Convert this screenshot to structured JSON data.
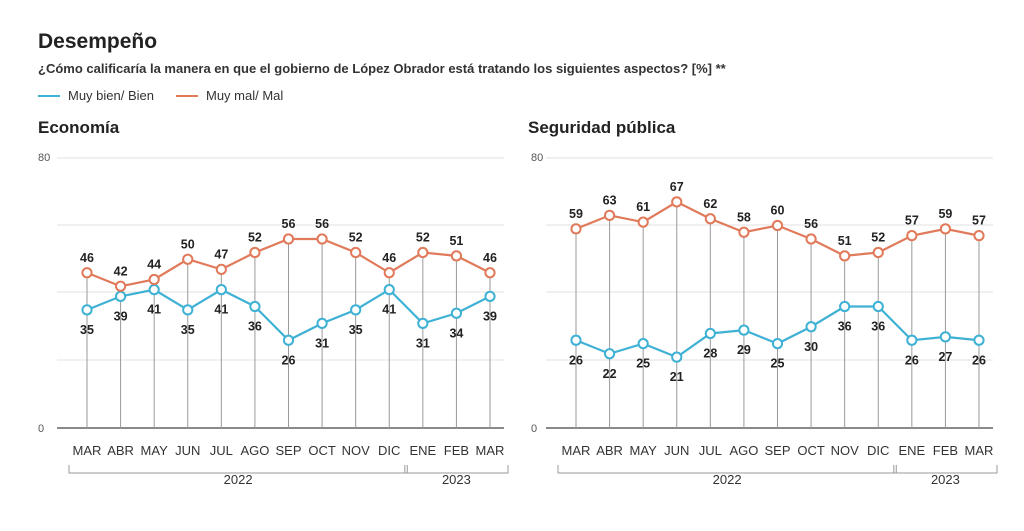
{
  "title": "Desempeño",
  "subtitle": "¿Cómo calificaría la manera en que el gobierno de López Obrador está tratando los siguientes aspectos? [%] **",
  "legend": [
    {
      "label": "Muy bien/ Bien",
      "color": "#3fb1d4"
    },
    {
      "label": "Muy mal/ Mal",
      "color": "#e07a5a"
    }
  ],
  "chart_data": [
    {
      "type": "line",
      "title": "Economía",
      "categories": [
        "MAR",
        "ABR",
        "MAY",
        "JUN",
        "JUL",
        "AGO",
        "SEP",
        "OCT",
        "NOV",
        "DIC",
        "ENE",
        "FEB",
        "MAR"
      ],
      "year_groups": [
        {
          "label": "2022",
          "from": 0,
          "to": 9
        },
        {
          "label": "2023",
          "from": 10,
          "to": 12
        }
      ],
      "ylim": [
        0,
        80
      ],
      "yticks": [
        0,
        80
      ],
      "grid": true,
      "series": [
        {
          "name": "Muy bien/ Bien",
          "color": "#3fb1d4",
          "values": [
            35,
            39,
            41,
            35,
            41,
            36,
            26,
            31,
            35,
            41,
            31,
            34,
            39
          ]
        },
        {
          "name": "Muy mal/ Mal",
          "color": "#e07a5a",
          "values": [
            46,
            42,
            44,
            50,
            47,
            52,
            56,
            56,
            52,
            46,
            52,
            51,
            46
          ]
        }
      ]
    },
    {
      "type": "line",
      "title": "Seguridad pública",
      "categories": [
        "MAR",
        "ABR",
        "MAY",
        "JUN",
        "JUL",
        "AGO",
        "SEP",
        "OCT",
        "NOV",
        "DIC",
        "ENE",
        "FEB",
        "MAR"
      ],
      "year_groups": [
        {
          "label": "2022",
          "from": 0,
          "to": 9
        },
        {
          "label": "2023",
          "from": 10,
          "to": 12
        }
      ],
      "ylim": [
        0,
        80
      ],
      "yticks": [
        0,
        80
      ],
      "grid": true,
      "series": [
        {
          "name": "Muy bien/ Bien",
          "color": "#3fb1d4",
          "values": [
            26,
            22,
            25,
            21,
            28,
            29,
            25,
            30,
            36,
            36,
            26,
            27,
            26
          ]
        },
        {
          "name": "Muy mal/ Mal",
          "color": "#e07a5a",
          "values": [
            59,
            63,
            61,
            67,
            62,
            58,
            60,
            56,
            51,
            52,
            57,
            59,
            57
          ]
        }
      ]
    }
  ]
}
